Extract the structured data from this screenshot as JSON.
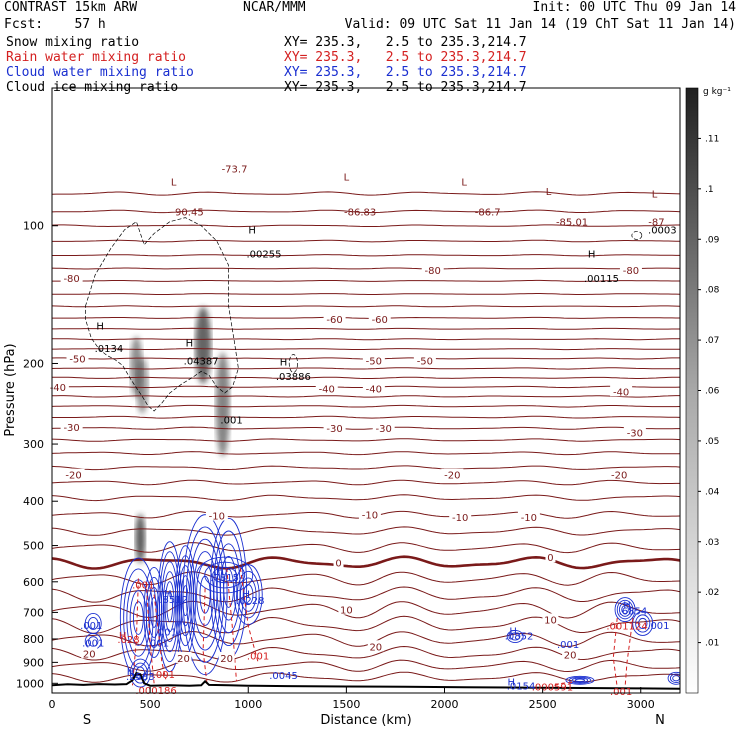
{
  "header": {
    "left1": "CONTRAST 15km ARW",
    "left2": "Fcst:    57 h",
    "center": "NCAR/MMM",
    "right1": "Init: 00 UTC Thu 09 Jan 14",
    "right2": "Valid: 09 UTC Sat 11 Jan 14 (19 ChT Sat 11 Jan 14)"
  },
  "fields": [
    {
      "label": "Snow mixing ratio",
      "xy": "XY= 235.3,   2.5 to 235.3,214.7",
      "color": "#000000"
    },
    {
      "label": "Rain water mixing ratio",
      "xy": "XY= 235.3,   2.5 to 235.3,214.7",
      "color": "#d42020"
    },
    {
      "label": "Cloud water mixing ratio",
      "xy": "XY= 235.3,   2.5 to 235.3,214.7",
      "color": "#1a2fd0"
    },
    {
      "label": "Cloud ice mixing ratio",
      "xy": "XY= 235.3,   2.5 to 235.3,214.7",
      "color": "#000000"
    }
  ],
  "colors": {
    "temperature": "#7a1a1a",
    "rain": "#d42020",
    "cloud_water": "#1a2fd0",
    "terrain": "#000000",
    "ice": "#333333"
  },
  "chart_data": {
    "type": "contour cross-section",
    "xlabel": "Distance (km)",
    "ylabel": "Pressure (hPa)",
    "xlim": [
      0,
      3200
    ],
    "ylim": [
      1050,
      50
    ],
    "y_log": true,
    "x_ticks": [
      0,
      500,
      1000,
      1500,
      2000,
      2500,
      3000
    ],
    "y_ticks": [
      100,
      200,
      300,
      400,
      500,
      600,
      700,
      800,
      900,
      1000
    ],
    "direction_labels": {
      "left": "S",
      "right": "N"
    },
    "colorbar": {
      "unit": "g kg⁻¹",
      "ticks": [
        ".01",
        ".02",
        ".03",
        ".04",
        ".05",
        ".06",
        ".07",
        ".08",
        ".09",
        ".1",
        ".11"
      ],
      "range": [
        0,
        0.12
      ]
    },
    "temperature_labels": [
      {
        "x": 100,
        "p": 130,
        "text": "-80"
      },
      {
        "x": 1940,
        "p": 125,
        "text": "-80"
      },
      {
        "x": 2950,
        "p": 125,
        "text": "-80"
      },
      {
        "x": 1440,
        "p": 160,
        "text": "-60"
      },
      {
        "x": 1670,
        "p": 160,
        "text": "-60"
      },
      {
        "x": 130,
        "p": 195,
        "text": "-50"
      },
      {
        "x": 1640,
        "p": 197,
        "text": "-50"
      },
      {
        "x": 1900,
        "p": 197,
        "text": "-50"
      },
      {
        "x": 30,
        "p": 225,
        "text": "-40"
      },
      {
        "x": 1400,
        "p": 227,
        "text": "-40"
      },
      {
        "x": 1640,
        "p": 227,
        "text": "-40"
      },
      {
        "x": 2900,
        "p": 230,
        "text": "-40"
      },
      {
        "x": 100,
        "p": 275,
        "text": "-30"
      },
      {
        "x": 1440,
        "p": 277,
        "text": "-30"
      },
      {
        "x": 1690,
        "p": 277,
        "text": "-30"
      },
      {
        "x": 2970,
        "p": 283,
        "text": "-30"
      },
      {
        "x": 110,
        "p": 350,
        "text": "-20"
      },
      {
        "x": 2040,
        "p": 350,
        "text": "-20"
      },
      {
        "x": 2890,
        "p": 350,
        "text": "-20"
      },
      {
        "x": 840,
        "p": 430,
        "text": "-10"
      },
      {
        "x": 1620,
        "p": 428,
        "text": "-10"
      },
      {
        "x": 2080,
        "p": 433,
        "text": "-10"
      },
      {
        "x": 2430,
        "p": 433,
        "text": "-10"
      },
      {
        "x": 1460,
        "p": 545,
        "text": "0"
      },
      {
        "x": 2540,
        "p": 530,
        "text": "0"
      },
      {
        "x": 1500,
        "p": 690,
        "text": "10"
      },
      {
        "x": 2540,
        "p": 725,
        "text": "10"
      },
      {
        "x": 1650,
        "p": 830,
        "text": "20"
      },
      {
        "x": 2640,
        "p": 865,
        "text": "20"
      },
      {
        "x": 190,
        "p": 860,
        "text": "20"
      },
      {
        "x": 670,
        "p": 880,
        "text": "20"
      },
      {
        "x": 890,
        "p": 880,
        "text": "20"
      }
    ],
    "extrema_labels": [
      {
        "x": 620,
        "p": 80,
        "text": "L",
        "color": "#7a1a1a"
      },
      {
        "x": 700,
        "p": 93,
        "text": "90.45",
        "color": "#7a1a1a"
      },
      {
        "x": 930,
        "p": 75,
        "text": "-73.7",
        "color": "#7a1a1a"
      },
      {
        "x": 1500,
        "p": 78,
        "text": "L",
        "color": "#7a1a1a"
      },
      {
        "x": 1570,
        "p": 93,
        "text": "-86.83",
        "color": "#7a1a1a"
      },
      {
        "x": 2100,
        "p": 80,
        "text": "L",
        "color": "#7a1a1a"
      },
      {
        "x": 2220,
        "p": 93,
        "text": "-86.7",
        "color": "#7a1a1a"
      },
      {
        "x": 2530,
        "p": 84,
        "text": "L",
        "color": "#7a1a1a"
      },
      {
        "x": 2650,
        "p": 98,
        "text": "-85.01",
        "color": "#7a1a1a"
      },
      {
        "x": 3070,
        "p": 85,
        "text": "L",
        "color": "#7a1a1a"
      },
      {
        "x": 3080,
        "p": 98,
        "text": "-87",
        "color": "#7a1a1a"
      },
      {
        "x": 1020,
        "p": 102,
        "text": "H",
        "color": "#000000"
      },
      {
        "x": 1080,
        "p": 115,
        "text": ".00255",
        "color": "#000000"
      },
      {
        "x": 2750,
        "p": 115,
        "text": "H",
        "color": "#000000"
      },
      {
        "x": 2800,
        "p": 130,
        "text": ".00115",
        "color": "#000000"
      },
      {
        "x": 3110,
        "p": 102,
        "text": ".0003",
        "color": "#000000"
      },
      {
        "x": 245,
        "p": 165,
        "text": "H",
        "color": "#000000"
      },
      {
        "x": 290,
        "p": 185,
        "text": ".0134",
        "color": "#000000"
      },
      {
        "x": 700,
        "p": 180,
        "text": "H",
        "color": "#000000"
      },
      {
        "x": 760,
        "p": 197,
        "text": ".04387",
        "color": "#000000"
      },
      {
        "x": 1180,
        "p": 198,
        "text": "H",
        "color": "#000000"
      },
      {
        "x": 1230,
        "p": 213,
        "text": ".03886",
        "color": "#000000"
      },
      {
        "x": 915,
        "p": 265,
        "text": ".001",
        "color": "#000000"
      },
      {
        "x": 855,
        "p": 565,
        "text": "H",
        "color": "#1a2fd0"
      },
      {
        "x": 880,
        "p": 585,
        "text": ".7815",
        "color": "#1a2fd0"
      },
      {
        "x": 590,
        "p": 635,
        "text": "H",
        "color": "#1a2fd0"
      },
      {
        "x": 620,
        "p": 655,
        "text": ".8512",
        "color": "#1a2fd0"
      },
      {
        "x": 990,
        "p": 637,
        "text": "H",
        "color": "#1a2fd0"
      },
      {
        "x": 1010,
        "p": 657,
        "text": ".6228",
        "color": "#1a2fd0"
      },
      {
        "x": 2930,
        "p": 673,
        "text": "H",
        "color": "#1a2fd0"
      },
      {
        "x": 2960,
        "p": 693,
        "text": ".6854",
        "color": "#1a2fd0"
      },
      {
        "x": 3090,
        "p": 745,
        "text": ".001",
        "color": "#1a2fd0"
      },
      {
        "x": 200,
        "p": 745,
        "text": ".001",
        "color": "#1a2fd0"
      },
      {
        "x": 210,
        "p": 815,
        "text": ".001",
        "color": "#1a2fd0"
      },
      {
        "x": 540,
        "p": 815,
        "text": ".001",
        "color": "#1a2fd0"
      },
      {
        "x": 580,
        "p": 770,
        "text": ".001",
        "color": "#1a2fd0"
      },
      {
        "x": 2350,
        "p": 767,
        "text": "H",
        "color": "#1a2fd0"
      },
      {
        "x": 2380,
        "p": 787,
        "text": ".0852",
        "color": "#1a2fd0"
      },
      {
        "x": 2630,
        "p": 820,
        "text": ".001",
        "color": "#1a2fd0"
      },
      {
        "x": 400,
        "p": 940,
        "text": "H",
        "color": "#1a2fd0"
      },
      {
        "x": 450,
        "p": 965,
        "text": ".2583",
        "color": "#1a2fd0"
      },
      {
        "x": 1180,
        "p": 960,
        "text": ".0045",
        "color": "#1a2fd0"
      },
      {
        "x": 2340,
        "p": 990,
        "text": "H",
        "color": "#1a2fd0"
      },
      {
        "x": 2390,
        "p": 1010,
        "text": ".0154",
        "color": "#1a2fd0"
      },
      {
        "x": 465,
        "p": 608,
        "text": ".001",
        "color": "#d42020"
      },
      {
        "x": 360,
        "p": 785,
        "text": "H",
        "color": "#d42020"
      },
      {
        "x": 390,
        "p": 800,
        "text": ".028",
        "color": "#d42020"
      },
      {
        "x": 1050,
        "p": 870,
        "text": ".001",
        "color": "#d42020"
      },
      {
        "x": 570,
        "p": 955,
        "text": ".001",
        "color": "#d42020"
      },
      {
        "x": 530,
        "p": 1035,
        "text": ".000186",
        "color": "#d42020"
      },
      {
        "x": 2550,
        "p": 1017,
        "text": ".000591",
        "color": "#d42020"
      },
      {
        "x": 2930,
        "p": 747,
        "text": ".001124",
        "color": "#d42020"
      },
      {
        "x": 2900,
        "p": 1040,
        "text": ".001",
        "color": "#d42020"
      }
    ]
  }
}
